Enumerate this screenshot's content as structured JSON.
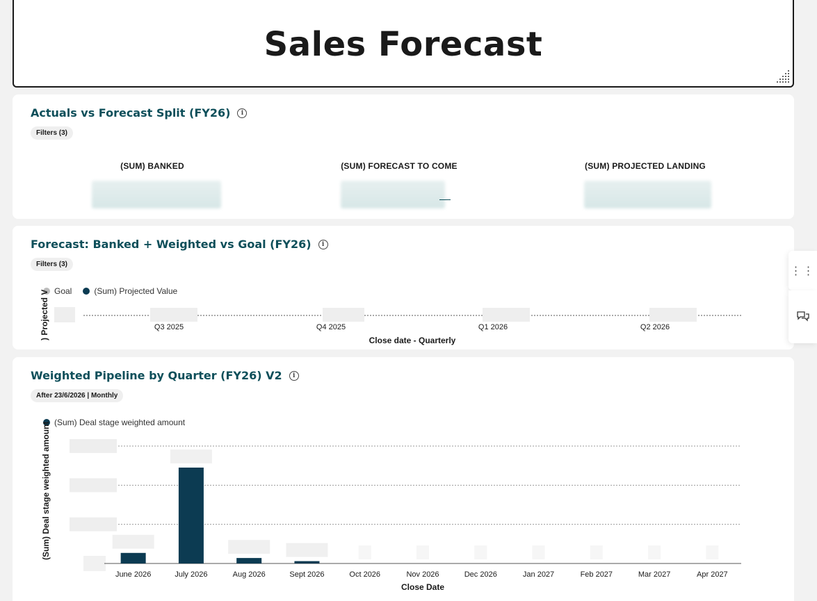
{
  "header": {
    "title": "Sales Forecast"
  },
  "card1": {
    "title": "Actuals vs Forecast Split (FY26)",
    "filter_chip": "Filters (3)",
    "metrics": [
      {
        "label": "(SUM) BANKED"
      },
      {
        "label": "(SUM) FORECAST TO COME"
      },
      {
        "label": "(SUM) PROJECTED LANDING"
      }
    ]
  },
  "card2": {
    "title": "Forecast: Banked + Weighted vs Goal (FY26)",
    "filter_chip": "Filters (3)",
    "legend": [
      {
        "label": "Goal",
        "color": "#bbbbbb"
      },
      {
        "label": "(Sum) Projected Value",
        "color": "#0c3b52"
      }
    ],
    "ylabel": ") Projected V",
    "xlabel": "Close date - Quarterly",
    "ticks": [
      "Q3 2025",
      "Q4 2025",
      "Q1 2026",
      "Q2 2026"
    ]
  },
  "card3": {
    "title": "Weighted Pipeline by Quarter (FY26) V2",
    "filter_chip": "After 23/6/2026 | Monthly"
  },
  "chart_data": {
    "type": "bar",
    "categories": [
      "June 2026",
      "July 2026",
      "Aug 2026",
      "Sept 2026",
      "Oct 2026",
      "Nov 2026",
      "Dec 2026",
      "Jan 2027",
      "Feb 2027",
      "Mar 2027",
      "Apr 2027"
    ],
    "series": [
      {
        "name": "(Sum) Deal stage weighted amount",
        "color": "#0c3b52",
        "values": [
          27000,
          245000,
          14000,
          6000,
          0,
          0,
          0,
          0,
          0,
          0,
          0
        ]
      }
    ],
    "xlabel": "Close Date",
    "ylabel": "(Sum) Deal stage weighted amount",
    "ylim": [
      0,
      300000
    ],
    "yticks": [
      100000,
      200000,
      300000
    ],
    "grid": true,
    "legend_position": "top-left"
  }
}
